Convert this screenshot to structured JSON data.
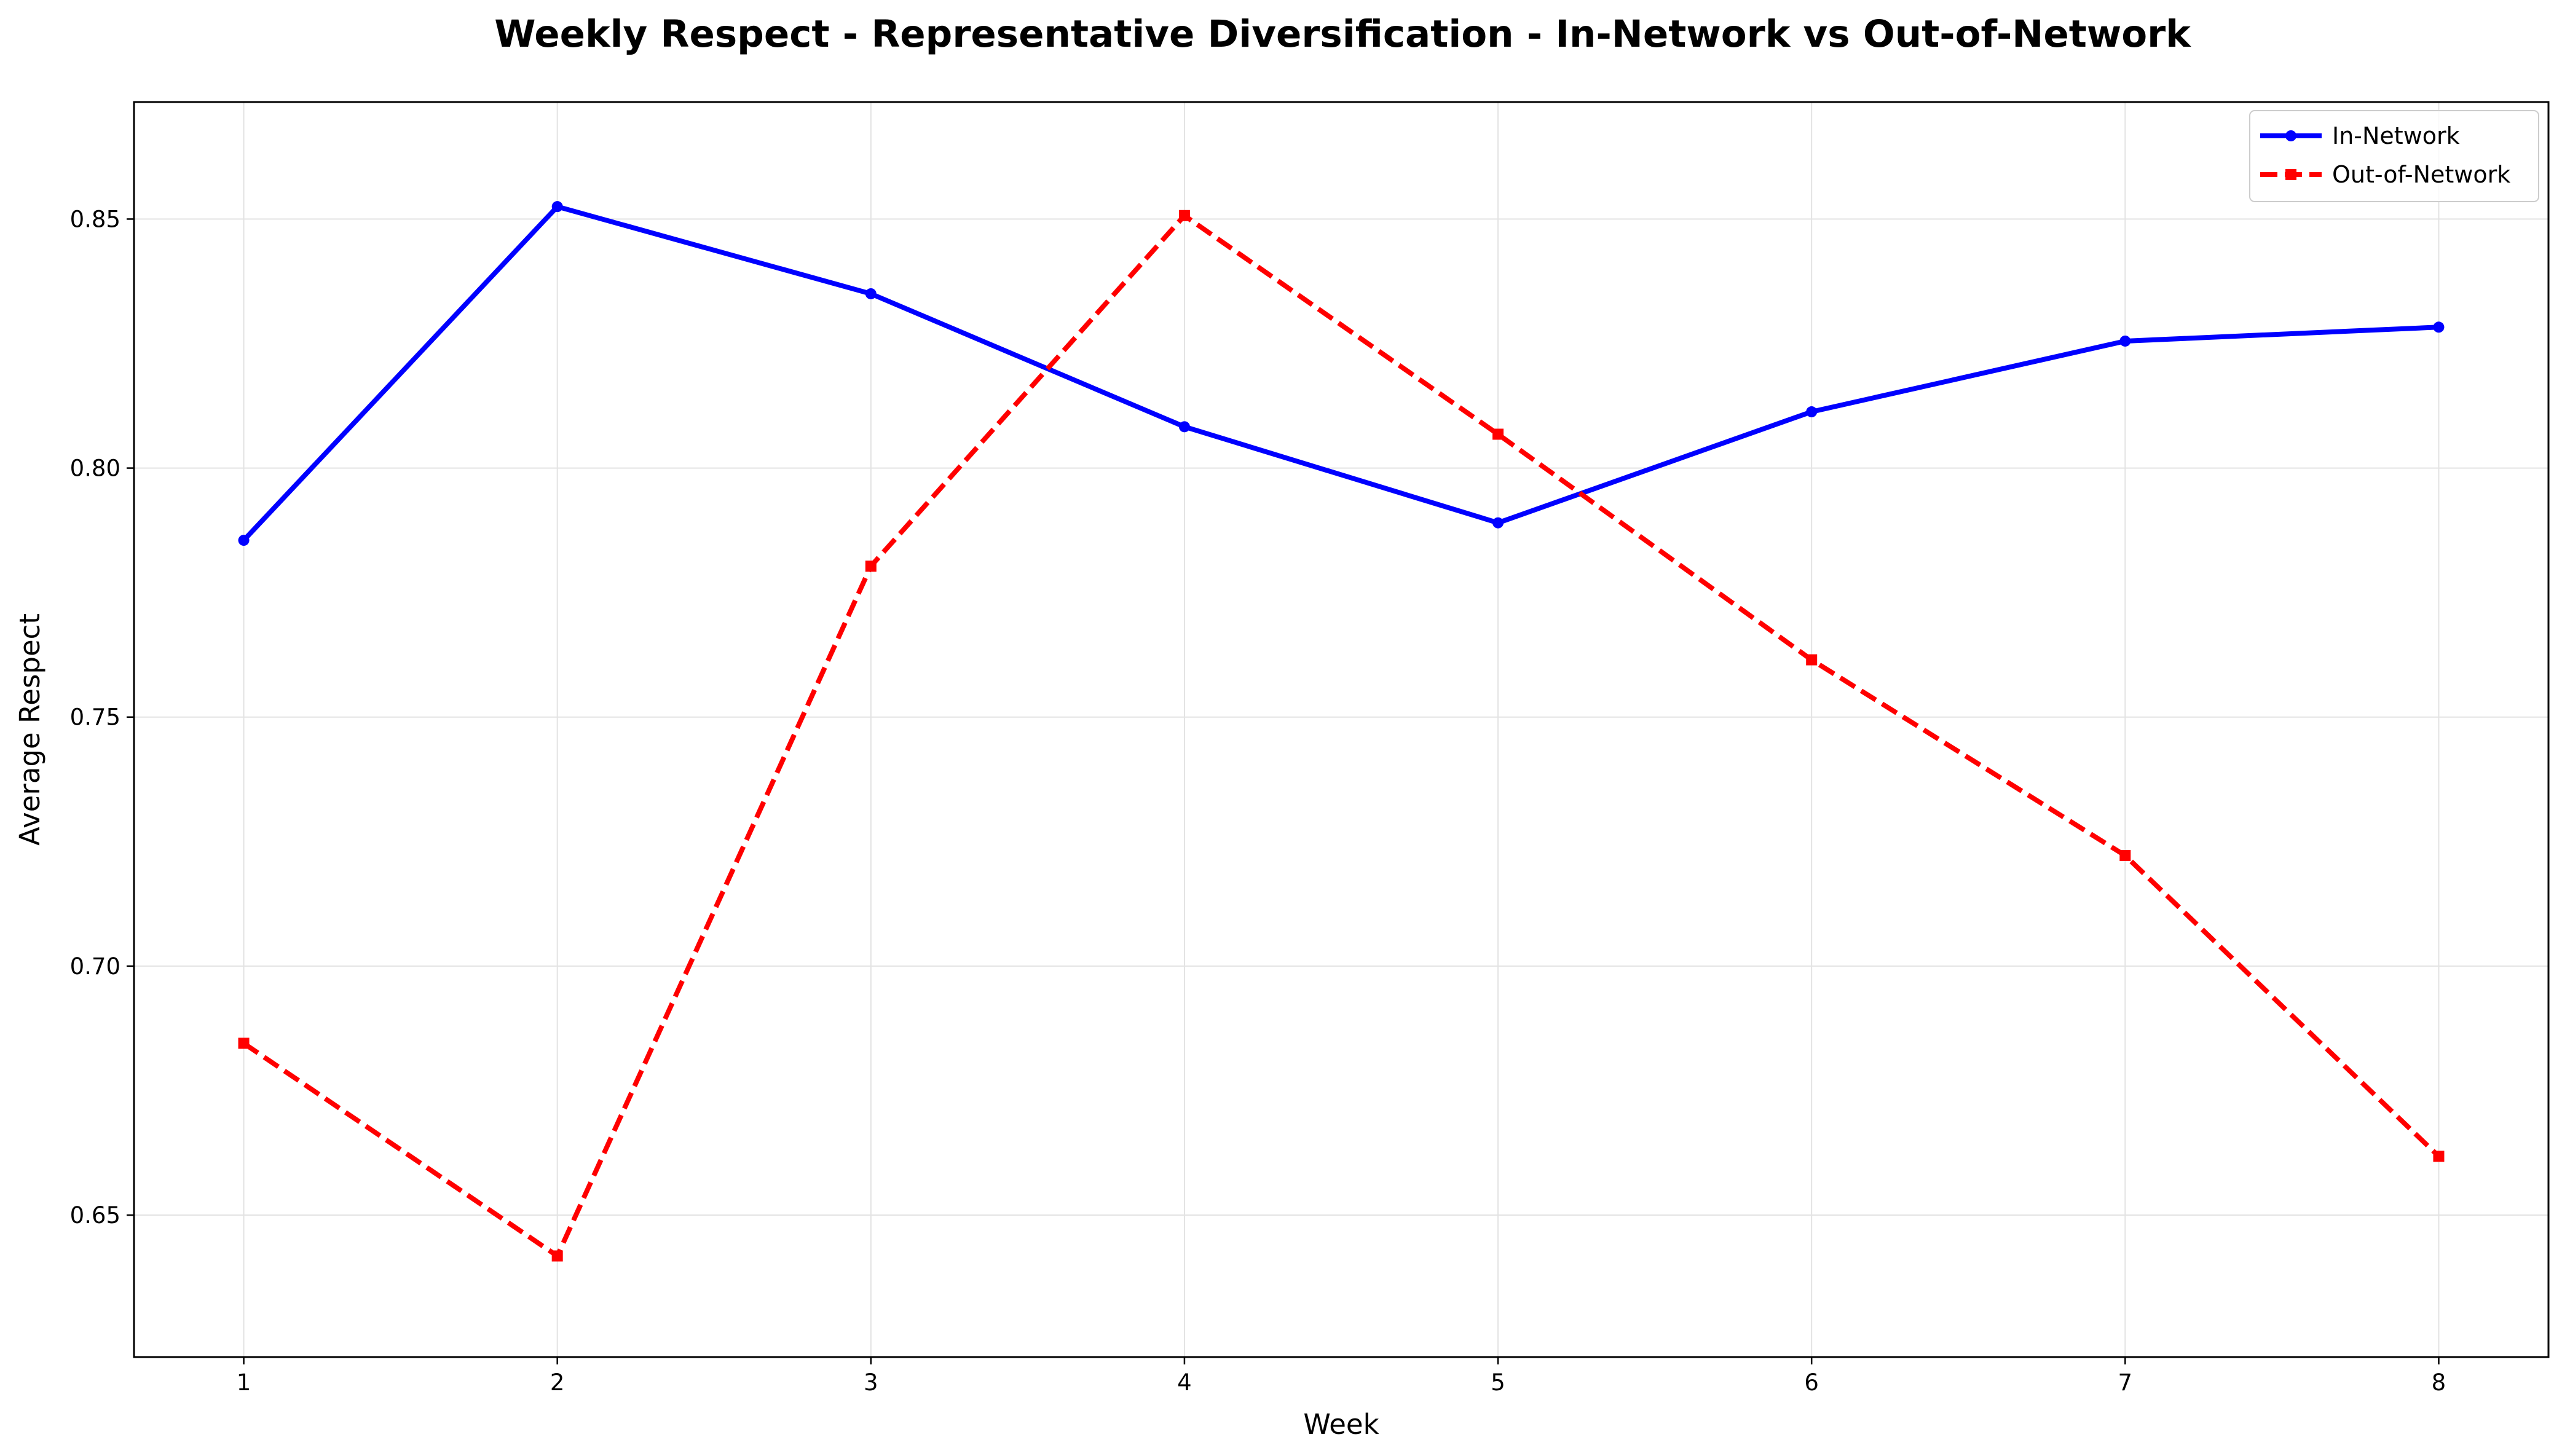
{
  "chart_data": {
    "type": "line",
    "title": "Weekly Respect - Representative Diversification - In-Network vs Out-of-Network",
    "xlabel": "Week",
    "ylabel": "Average Respect",
    "x": [
      1,
      2,
      3,
      4,
      5,
      6,
      7,
      8
    ],
    "xlim": [
      0.65,
      8.35
    ],
    "ylim": [
      0.6215,
      0.8735
    ],
    "xticks": [
      "1",
      "2",
      "3",
      "4",
      "5",
      "6",
      "7",
      "8"
    ],
    "yticks": [
      "0.65",
      "0.70",
      "0.75",
      "0.80",
      "0.85"
    ],
    "grid": true,
    "legend_position": "top-right",
    "series": [
      {
        "name": "In-Network",
        "color": "#0000ff",
        "line_style": "solid",
        "marker": "circle",
        "values": [
          0.7855,
          0.8525,
          0.835,
          0.8083,
          0.789,
          0.8113,
          0.8255,
          0.8283
        ]
      },
      {
        "name": "Out-of-Network",
        "color": "#ff0000",
        "line_style": "dashed",
        "marker": "square",
        "values": [
          0.6845,
          0.6418,
          0.7803,
          0.8507,
          0.8068,
          0.7615,
          0.7222,
          0.6618
        ]
      }
    ]
  }
}
